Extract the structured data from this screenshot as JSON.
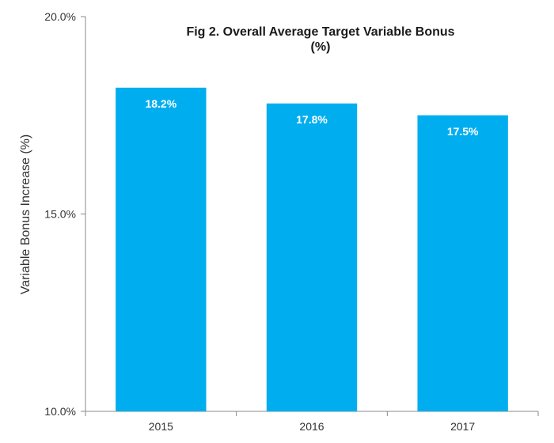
{
  "chart_data": {
    "type": "bar",
    "title_lines": [
      "Fig 2. Overall Average Target Variable Bonus",
      "(%)"
    ],
    "xlabel": "",
    "ylabel": "Variable Bonus Increase (%)",
    "categories": [
      "2015",
      "2016",
      "2017"
    ],
    "values": [
      18.2,
      17.8,
      17.5
    ],
    "data_labels": [
      "18.2%",
      "17.8%",
      "17.5%"
    ],
    "ylim": [
      10,
      20
    ],
    "yticks": [
      10,
      15,
      20
    ],
    "ytick_labels": [
      "10.0%",
      "15.0%",
      "20.0%"
    ],
    "bar_color": "#00aeef",
    "grid": false,
    "legend": "none"
  }
}
